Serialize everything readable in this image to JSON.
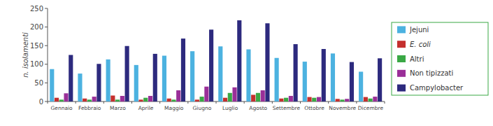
{
  "chart_data": {
    "type": "bar",
    "y_label": "n. isolamenti",
    "categories": [
      "Gennaio",
      "Febbraio",
      "Marzo",
      "Aprile",
      "Maggio",
      "Giugno",
      "Luglio",
      "Agosto",
      "Settembre",
      "Ottobre",
      "Novembre",
      "Dicembre"
    ],
    "series": [
      {
        "name": "Jejuni",
        "color": "#4cb2e0",
        "values": [
          87,
          75,
          113,
          98,
          123,
          135,
          148,
          140,
          117,
          107,
          129,
          80
        ]
      },
      {
        "name": "E. coli",
        "color": "#c4302e",
        "values": [
          10,
          8,
          16,
          5,
          8,
          5,
          10,
          18,
          8,
          12,
          7,
          12
        ]
      },
      {
        "name": "Altri",
        "color": "#3aa845",
        "values": [
          5,
          5,
          5,
          10,
          5,
          13,
          23,
          23,
          10,
          10,
          5,
          8
        ]
      },
      {
        "name": "Non tipizzati",
        "color": "#9a2f98",
        "values": [
          22,
          13,
          15,
          15,
          30,
          40,
          38,
          30,
          15,
          12,
          7,
          13
        ]
      },
      {
        "name": "Campylobacter",
        "color": "#2d2a7e",
        "values": [
          125,
          101,
          149,
          128,
          169,
          193,
          218,
          210,
          154,
          141,
          106,
          116
        ]
      }
    ],
    "ylim": [
      0,
      250
    ],
    "yticks": [
      0,
      50,
      100,
      150,
      200,
      250
    ],
    "grid": false,
    "legend": "right"
  }
}
